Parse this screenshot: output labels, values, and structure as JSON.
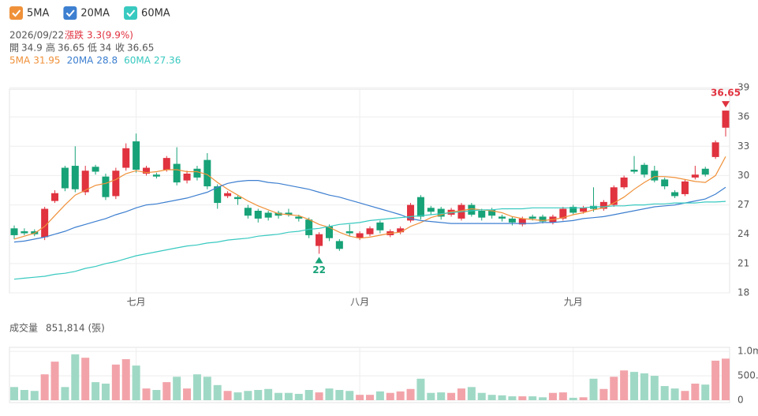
{
  "chart_data": {
    "type": "candlestick",
    "date": "2026/09/22",
    "change_title": "漲跌",
    "change_text": "3.3(9.9%)",
    "ohlc_labels": [
      "開",
      "高",
      "低",
      "收"
    ],
    "up_color": "#e0323f",
    "down_color": "#17a277",
    "categories": [
      null,
      null,
      null,
      null,
      null,
      null,
      null,
      null,
      null,
      null,
      null,
      null,
      "七月",
      null,
      null,
      null,
      null,
      null,
      null,
      null,
      null,
      null,
      null,
      null,
      null,
      null,
      null,
      null,
      null,
      null,
      null,
      null,
      null,
      null,
      "八月",
      null,
      null,
      null,
      null,
      null,
      null,
      null,
      null,
      null,
      null,
      null,
      null,
      null,
      null,
      null,
      null,
      null,
      null,
      null,
      null,
      "九月",
      null,
      null,
      null,
      null,
      null,
      null,
      null,
      null,
      null,
      null,
      null,
      null,
      null,
      null,
      null
    ],
    "open": [
      24.6,
      24.3,
      24.3,
      23.7,
      27.4,
      30.8,
      31.0,
      28.3,
      30.9,
      29.9,
      27.9,
      30.8,
      33.5,
      30.2,
      30.1,
      30.6,
      31.2,
      29.5,
      30.7,
      31.6,
      28.9,
      27.9,
      27.8,
      26.7,
      26.4,
      26.2,
      26.2,
      26.2,
      25.8,
      25.5,
      22.8,
      24.8,
      23.3,
      24.3,
      23.6,
      24.0,
      25.2,
      23.9,
      24.2,
      25.4,
      27.8,
      26.7,
      26.6,
      26.0,
      25.6,
      27.0,
      26.4,
      26.5,
      25.8,
      25.6,
      25.0,
      25.8,
      25.8,
      25.2,
      25.6,
      26.8,
      26.3,
      26.9,
      26.6,
      27.0,
      28.8,
      30.6,
      31.1,
      30.5,
      29.6,
      28.3,
      28.1,
      29.8,
      30.7,
      31.9,
      34.9
    ],
    "high": [
      24.9,
      24.6,
      24.5,
      26.8,
      28.5,
      31.0,
      33.0,
      31.0,
      31.1,
      30.2,
      30.8,
      33.3,
      34.3,
      31.0,
      30.3,
      32.0,
      32.9,
      30.5,
      31.0,
      32.3,
      29.1,
      28.4,
      28.0,
      27.0,
      26.6,
      26.4,
      26.4,
      26.6,
      26.0,
      25.7,
      24.2,
      25.0,
      23.5,
      25.0,
      24.3,
      24.8,
      25.4,
      24.5,
      24.8,
      27.2,
      28.0,
      26.9,
      26.8,
      26.7,
      27.2,
      27.2,
      26.6,
      26.7,
      26.0,
      25.8,
      25.8,
      26.0,
      26.0,
      26.0,
      26.8,
      27.0,
      26.9,
      28.8,
      27.5,
      29.0,
      30.0,
      32.0,
      31.3,
      31.0,
      29.8,
      28.5,
      29.6,
      31.0,
      30.9,
      33.6,
      36.65
    ],
    "low": [
      23.5,
      23.9,
      23.8,
      23.4,
      27.2,
      28.4,
      28.3,
      28.0,
      30.1,
      27.5,
      27.6,
      30.5,
      30.3,
      30.0,
      29.7,
      30.4,
      29.0,
      29.2,
      29.5,
      28.6,
      26.6,
      27.7,
      27.0,
      25.6,
      25.2,
      25.4,
      25.6,
      25.8,
      25.3,
      23.6,
      22,
      23.3,
      22.3,
      23.8,
      23.4,
      23.8,
      24.1,
      23.7,
      24.0,
      25.2,
      25.5,
      26.0,
      25.5,
      25.8,
      25.4,
      25.8,
      25.4,
      25.6,
      25.3,
      24.9,
      24.8,
      25.4,
      25.1,
      25.0,
      25.4,
      26.0,
      26.1,
      26.3,
      26.4,
      26.8,
      28.6,
      30.2,
      29.8,
      29.3,
      28.6,
      27.7,
      27.9,
      29.6,
      29.9,
      31.7,
      34
    ],
    "close": [
      23.9,
      24.1,
      24.0,
      26.6,
      28.2,
      28.7,
      28.6,
      30.5,
      30.4,
      27.8,
      30.5,
      32.8,
      30.6,
      30.8,
      29.9,
      31.8,
      29.3,
      30.2,
      29.8,
      28.9,
      27.2,
      28.2,
      27.6,
      25.9,
      25.6,
      25.7,
      25.9,
      26.0,
      25.6,
      23.9,
      24.0,
      23.6,
      22.5,
      24.1,
      24.1,
      24.6,
      24.4,
      24.3,
      24.6,
      27.0,
      25.8,
      26.3,
      25.8,
      26.5,
      27.0,
      26.0,
      25.7,
      25.9,
      25.6,
      25.2,
      25.6,
      25.6,
      25.3,
      25.8,
      26.6,
      26.2,
      26.7,
      26.6,
      27.3,
      28.8,
      29.8,
      30.4,
      30.1,
      29.5,
      28.9,
      27.9,
      29.4,
      30.1,
      30.1,
      33.4,
      36.65
    ],
    "series": [
      {
        "name": "5MA",
        "color": "#f0913a",
        "values": [
          23.5,
          23.8,
          24.1,
          24.8,
          25.9,
          27.0,
          28.0,
          28.5,
          29.0,
          29.2,
          29.6,
          30.2,
          30.5,
          30.3,
          30.4,
          30.6,
          30.6,
          30.4,
          30.4,
          30.1,
          29.3,
          28.6,
          28.0,
          27.4,
          26.9,
          26.5,
          26.1,
          26.0,
          25.9,
          25.5,
          25.0,
          24.7,
          24.2,
          23.8,
          23.6,
          23.7,
          23.9,
          24.1,
          24.2,
          24.8,
          25.2,
          25.7,
          26.0,
          26.3,
          26.4,
          26.6,
          26.5,
          26.4,
          26.2,
          25.8,
          25.6,
          25.5,
          25.4,
          25.5,
          25.7,
          26.0,
          26.2,
          26.5,
          26.7,
          27.2,
          27.8,
          28.6,
          29.3,
          29.9,
          29.9,
          29.8,
          29.6,
          29.4,
          29.3,
          30.0,
          31.95
        ]
      },
      {
        "name": "20MA",
        "color": "#3d7fd0",
        "values": [
          23.2,
          23.3,
          23.5,
          23.7,
          24.0,
          24.3,
          24.7,
          25.0,
          25.3,
          25.6,
          26.0,
          26.3,
          26.7,
          27.0,
          27.1,
          27.3,
          27.5,
          27.7,
          28.0,
          28.3,
          28.8,
          29.2,
          29.4,
          29.5,
          29.5,
          29.3,
          29.2,
          29.0,
          28.8,
          28.6,
          28.3,
          28.0,
          27.8,
          27.5,
          27.2,
          26.9,
          26.6,
          26.3,
          26.0,
          25.6,
          25.4,
          25.3,
          25.2,
          25.1,
          25.1,
          25.1,
          25.1,
          25.1,
          25.1,
          25.1,
          25.1,
          25.1,
          25.2,
          25.2,
          25.3,
          25.4,
          25.6,
          25.7,
          25.8,
          26.0,
          26.2,
          26.4,
          26.6,
          26.8,
          26.9,
          27.0,
          27.2,
          27.4,
          27.6,
          28.1,
          28.8
        ]
      },
      {
        "name": "60MA",
        "color": "#38c9c0",
        "values": [
          19.4,
          19.5,
          19.6,
          19.7,
          19.9,
          20.0,
          20.2,
          20.5,
          20.7,
          21.0,
          21.2,
          21.5,
          21.8,
          22.0,
          22.2,
          22.4,
          22.6,
          22.8,
          22.9,
          23.1,
          23.2,
          23.4,
          23.5,
          23.6,
          23.8,
          23.9,
          24.0,
          24.2,
          24.3,
          24.5,
          24.6,
          24.8,
          25.0,
          25.1,
          25.2,
          25.4,
          25.5,
          25.6,
          25.7,
          25.8,
          25.9,
          26.0,
          26.1,
          26.2,
          26.3,
          26.4,
          26.5,
          26.5,
          26.6,
          26.6,
          26.6,
          26.7,
          26.7,
          26.7,
          26.7,
          26.7,
          26.7,
          26.8,
          26.8,
          26.9,
          26.9,
          27.0,
          27.0,
          27.1,
          27.1,
          27.2,
          27.2,
          27.2,
          27.3,
          27.3,
          27.36
        ]
      }
    ],
    "ylim": [
      18,
      39
    ],
    "yticks": [
      18,
      21,
      24,
      27,
      30,
      33,
      36,
      39
    ],
    "grid": true,
    "volume_title": "成交量",
    "volume_text": "851,814 (張)",
    "volume": [
      270000,
      210000,
      190000,
      530000,
      790000,
      270000,
      940000,
      870000,
      370000,
      340000,
      730000,
      840000,
      710000,
      240000,
      210000,
      370000,
      480000,
      240000,
      530000,
      480000,
      310000,
      190000,
      160000,
      190000,
      210000,
      230000,
      150000,
      150000,
      130000,
      210000,
      160000,
      240000,
      210000,
      190000,
      110000,
      110000,
      180000,
      150000,
      180000,
      230000,
      440000,
      150000,
      160000,
      150000,
      240000,
      270000,
      150000,
      110000,
      100000,
      80000,
      80000,
      80000,
      60000,
      150000,
      160000,
      50000,
      60000,
      440000,
      230000,
      480000,
      610000,
      580000,
      550000,
      500000,
      290000,
      240000,
      190000,
      340000,
      320000,
      810000,
      851814
    ],
    "volume_up_color": "#f2a3a9",
    "volume_down_color": "#9fd9c5",
    "volume_ylim": [
      0,
      1050000
    ],
    "volume_yticks": [
      0,
      {
        "value": 500000,
        "label": "500.0"
      },
      {
        "value": 1000000,
        "label": "1.0m"
      }
    ]
  }
}
